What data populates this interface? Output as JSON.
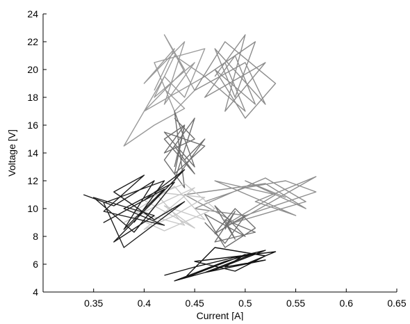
{
  "chart_data": {
    "type": "line",
    "xlabel": "Current [A]",
    "ylabel": "Voltage [V]",
    "xlim": [
      0.3,
      0.65
    ],
    "ylim": [
      4,
      24
    ],
    "xticks": [
      0.35,
      0.4,
      0.45,
      0.5,
      0.55,
      0.6,
      0.65
    ],
    "xtick_labels": [
      "0.35",
      "0.4",
      "0.45",
      "0.5",
      "0.55",
      "0.6",
      "0.65"
    ],
    "yticks": [
      4,
      6,
      8,
      10,
      12,
      14,
      16,
      18,
      20,
      22,
      24
    ],
    "ytick_labels": [
      "4",
      "6",
      "8",
      "10",
      "12",
      "14",
      "16",
      "18",
      "20",
      "22",
      "24"
    ],
    "grid": false,
    "legend": "none",
    "box": "left-bottom axes only",
    "series": [
      {
        "color": "#9a9a9a",
        "x": [
          0.41,
          0.43,
          0.4,
          0.44,
          0.42,
          0.45,
          0.41,
          0.43,
          0.46,
          0.4,
          0.44,
          0.42,
          0.45,
          0.43,
          0.41,
          0.46,
          0.44,
          0.42,
          0.38,
          0.41,
          0.44,
          0.42
        ],
        "y": [
          18.5,
          21.5,
          19.0,
          22.0,
          17.5,
          20.5,
          18.0,
          21.0,
          19.5,
          17.0,
          20.0,
          22.5,
          18.5,
          17.0,
          20.5,
          21.5,
          18.0,
          19.5,
          14.5,
          16.0,
          17.2,
          18.6
        ]
      },
      {
        "color": "#8c8c8c",
        "x": [
          0.47,
          0.5,
          0.48,
          0.52,
          0.46,
          0.49,
          0.51,
          0.47,
          0.5,
          0.53,
          0.48,
          0.45,
          0.5,
          0.52,
          0.47,
          0.49,
          0.51,
          0.46,
          0.5,
          0.48
        ],
        "y": [
          19.5,
          22.5,
          17.0,
          20.5,
          18.0,
          21.0,
          17.5,
          20.0,
          16.5,
          19.0,
          22.0,
          18.5,
          20.5,
          17.5,
          21.5,
          18.0,
          22.0,
          19.5,
          17.0,
          20.5
        ]
      },
      {
        "color": "#6e6e6e",
        "x": [
          0.43,
          0.45,
          0.42,
          0.44,
          0.43,
          0.46,
          0.42,
          0.45,
          0.43,
          0.44,
          0.42,
          0.45,
          0.43,
          0.46,
          0.44,
          0.43,
          0.45,
          0.42,
          0.44,
          0.43
        ],
        "y": [
          16.5,
          15.0,
          14.0,
          16.0,
          12.5,
          14.5,
          15.5,
          13.0,
          17.0,
          11.5,
          13.5,
          16.5,
          12.0,
          15.0,
          13.5,
          14.5,
          12.5,
          15.0,
          16.0,
          13.0
        ]
      },
      {
        "color": "#8e8e8e",
        "x": [
          0.46,
          0.5,
          0.54,
          0.57,
          0.5,
          0.45,
          0.52,
          0.56,
          0.48,
          0.53,
          0.47,
          0.55,
          0.51,
          0.57,
          0.49,
          0.44,
          0.52,
          0.56,
          0.5,
          0.54
        ],
        "y": [
          10.5,
          11.5,
          12.0,
          11.2,
          9.5,
          10.0,
          12.2,
          10.5,
          8.8,
          11.0,
          12.0,
          9.5,
          10.5,
          12.3,
          9.0,
          11.0,
          11.8,
          10.0,
          12.0,
          10.8
        ]
      },
      {
        "color": "#707070",
        "x": [
          0.46,
          0.48,
          0.5,
          0.47,
          0.49,
          0.51,
          0.48,
          0.46,
          0.5,
          0.47,
          0.49,
          0.48,
          0.51,
          0.47,
          0.49,
          0.48
        ],
        "y": [
          9.0,
          7.5,
          9.5,
          8.2,
          10.0,
          8.6,
          7.2,
          9.6,
          8.0,
          10.2,
          7.8,
          9.2,
          8.3,
          7.6,
          9.8,
          8.5
        ]
      },
      {
        "color": "#c8c8c8",
        "x": [
          0.38,
          0.42,
          0.45,
          0.4,
          0.43,
          0.46,
          0.41,
          0.44,
          0.39,
          0.43,
          0.46,
          0.42,
          0.45,
          0.4,
          0.44,
          0.47,
          0.42,
          0.39
        ],
        "y": [
          9.0,
          10.5,
          11.5,
          8.5,
          9.5,
          10.8,
          11.2,
          8.8,
          9.8,
          11.6,
          9.2,
          10.2,
          8.6,
          10.6,
          11.8,
          10.0,
          8.4,
          9.4
        ]
      },
      {
        "color": "#1e1e1e",
        "x": [
          0.34,
          0.37,
          0.41,
          0.38,
          0.42,
          0.36,
          0.4,
          0.44,
          0.37,
          0.41,
          0.35,
          0.39,
          0.43,
          0.38,
          0.42,
          0.36,
          0.4,
          0.37,
          0.41,
          0.44,
          0.38,
          0.36,
          0.42,
          0.39
        ],
        "y": [
          11.0,
          10.2,
          12.0,
          8.5,
          11.4,
          9.0,
          10.6,
          12.8,
          7.6,
          9.5,
          10.8,
          8.3,
          11.9,
          10.0,
          8.8,
          9.8,
          12.4,
          11.2,
          9.2,
          10.5,
          7.2,
          10.4,
          12.0,
          9.0
        ]
      },
      {
        "color": "#111111",
        "x": [
          0.42,
          0.45,
          0.49,
          0.52,
          0.47,
          0.43,
          0.48,
          0.51,
          0.46,
          0.5,
          0.53,
          0.45,
          0.49,
          0.52,
          0.47,
          0.44,
          0.5,
          0.48,
          0.52,
          0.46
        ],
        "y": [
          5.2,
          5.8,
          6.5,
          7.0,
          5.6,
          4.8,
          6.2,
          6.8,
          5.4,
          6.0,
          6.9,
          6.2,
          5.5,
          6.6,
          7.2,
          5.0,
          6.7,
          5.8,
          6.3,
          5.4
        ]
      }
    ]
  }
}
